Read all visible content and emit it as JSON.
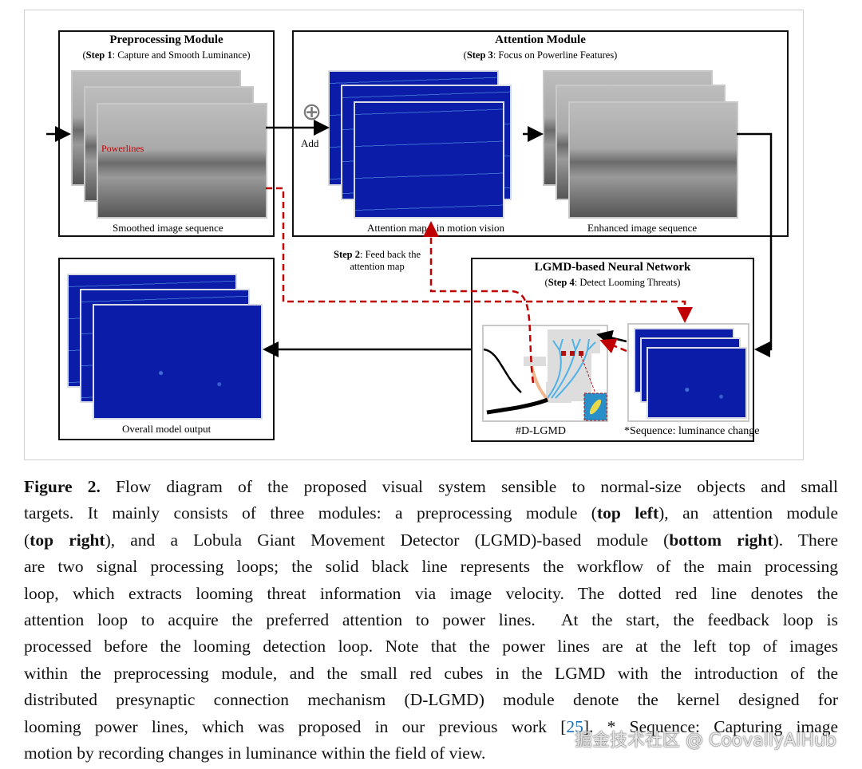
{
  "figure": {
    "preprocessing": {
      "title": "Preprocessing Module",
      "step_bold": "Step 1",
      "step_text": ": Capture and Smooth Luminance)",
      "step_open": "(",
      "annotation": "Powerlines",
      "caption": "Smoothed image sequence"
    },
    "attention": {
      "title": "Attention Module",
      "step_open": "(",
      "step_bold": "Step 3",
      "step_text": ": Focus on Powerline Features)",
      "add_label": "Add",
      "map_caption_a": "Attention map",
      "map_caption_b": "in motion vision",
      "enhanced_caption": "Enhanced image sequence"
    },
    "feedback": {
      "step_bold": "Step 2",
      "line1": ": Feed back the",
      "line2": "attention map"
    },
    "lgmd": {
      "title": "LGMD-based Neural Network",
      "step_open": "(",
      "step_bold": "Step 4",
      "step_text": ": Detect  Looming Threats)",
      "dlgmd_caption": "#D-LGMD",
      "sequence_caption": "*Sequence: luminance change"
    },
    "output": {
      "caption": "Overall model output"
    },
    "colors": {
      "solid_line": "#000000",
      "dashed_line": "#c00000",
      "map_blue": "#0a1ca8"
    }
  },
  "caption": {
    "lines": [
      [
        {
          "t": "Figure 2.",
          "s": "b"
        },
        {
          "t": " Flow diagram of the proposed visual system sensible to normal-size objects and small"
        }
      ],
      [
        {
          "t": "targets. It mainly consists of three modules: a preprocessing module ("
        },
        {
          "t": "top left",
          "s": "b"
        },
        {
          "t": "), an attention module"
        }
      ],
      [
        {
          "t": "("
        },
        {
          "t": "top right",
          "s": "b"
        },
        {
          "t": "), and a Lobula Giant Movement Detector (LGMD)-based module ("
        },
        {
          "t": "bottom right",
          "s": "b"
        },
        {
          "t": "). There"
        }
      ],
      [
        {
          "t": "are two signal processing loops; the solid black line represents the workflow of the main processing"
        }
      ],
      [
        {
          "t": "loop, which extracts looming threat information via image velocity. The dotted red line denotes the"
        }
      ],
      [
        {
          "t": "attention loop to acquire the preferred attention to power lines.  At the start, the feedback loop is"
        }
      ],
      [
        {
          "t": "processed before the looming detection loop. Note that the power lines are at the left top of images"
        }
      ],
      [
        {
          "t": "within the preprocessing module, and the small red cubes in the LGMD with the introduction of the"
        }
      ],
      [
        {
          "t": "distributed presynaptic connection mechanism (D-LGMD) module denote the kernel designed for"
        }
      ],
      [
        {
          "t": "looming power lines, which was proposed in our previous work ["
        },
        {
          "t": "25",
          "s": "ref"
        },
        {
          "t": "]. * Sequence: Capturing image"
        }
      ],
      [
        {
          "t": "motion by recording changes in luminance within the field of view."
        }
      ]
    ]
  },
  "watermark": "掘金技术社区 @ CoovallyAIHub"
}
